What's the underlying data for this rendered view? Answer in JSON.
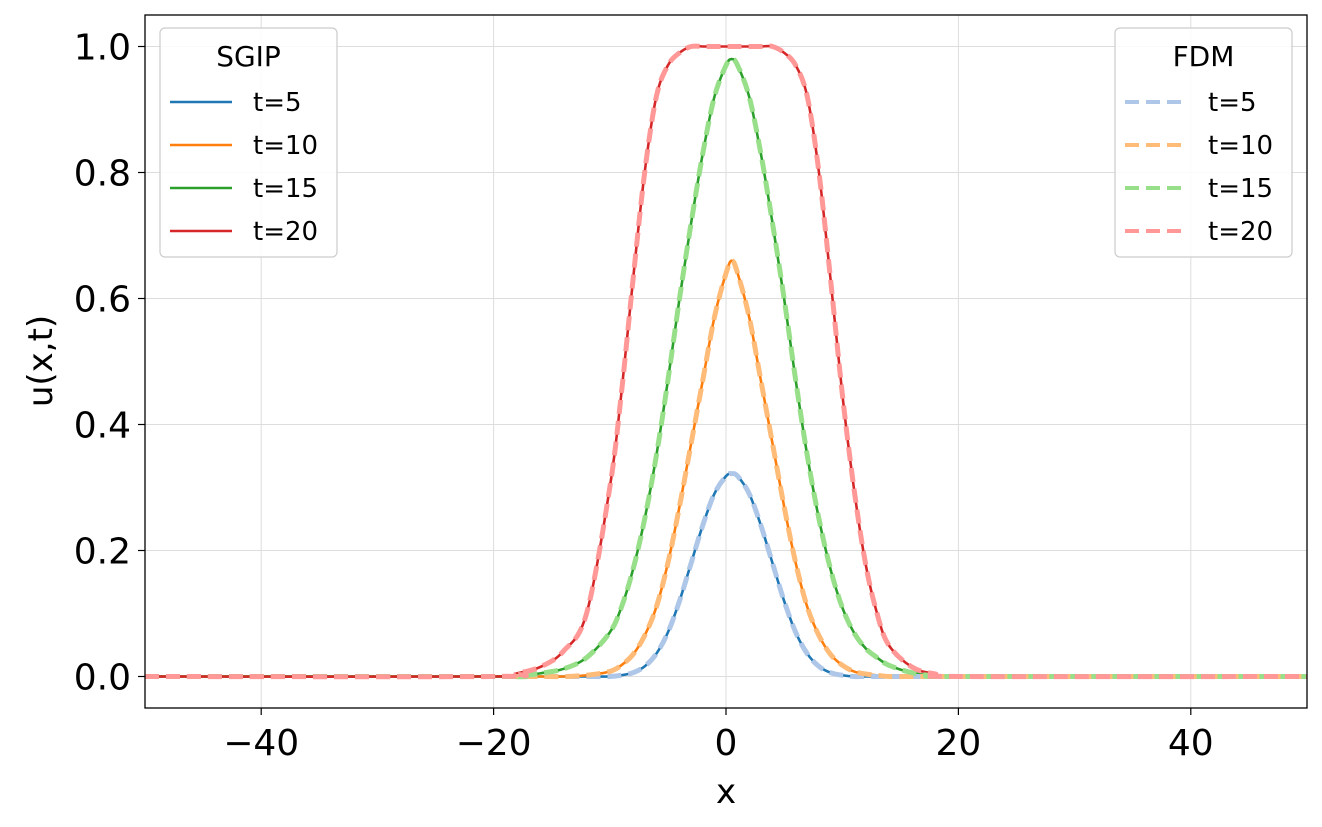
{
  "chart_data": {
    "type": "line",
    "xlabel": "x",
    "ylabel": "u(x,t)",
    "xlim": [
      -50,
      50
    ],
    "ylim": [
      -0.05,
      1.05
    ],
    "xticks": [
      {
        "value": -40,
        "label": "−40"
      },
      {
        "value": -20,
        "label": "−20"
      },
      {
        "value": 0,
        "label": "0"
      },
      {
        "value": 20,
        "label": "20"
      },
      {
        "value": 40,
        "label": "40"
      }
    ],
    "yticks": [
      {
        "value": 0.0,
        "label": "0.0"
      },
      {
        "value": 0.2,
        "label": "0.2"
      },
      {
        "value": 0.4,
        "label": "0.4"
      },
      {
        "value": 0.6,
        "label": "0.6"
      },
      {
        "value": 0.8,
        "label": "0.8"
      },
      {
        "value": 1.0,
        "label": "1.0"
      }
    ],
    "grid": true,
    "legends": [
      {
        "title": "SGIP",
        "placement": "top-left",
        "style": "solid",
        "entries": [
          "t=5",
          "t=10",
          "t=15",
          "t=20"
        ]
      },
      {
        "title": "FDM",
        "placement": "top-right",
        "style": "dashed",
        "entries": [
          "t=5",
          "t=10",
          "t=15",
          "t=20"
        ]
      }
    ],
    "x": [
      -50,
      -20,
      -18,
      -16,
      -14,
      -12,
      -10,
      -9,
      -8,
      -7,
      -6,
      -5,
      -4,
      -3,
      -2,
      -1,
      0,
      0.5,
      1,
      2,
      3,
      4,
      5,
      6,
      7,
      8,
      9,
      10,
      11,
      12,
      13,
      14,
      16,
      18,
      20,
      50
    ],
    "series": [
      {
        "group": "SGIP",
        "name": "t=5",
        "color": "#1f77b4",
        "values": [
          0,
          0,
          0,
          0,
          0,
          0,
          0,
          0.002,
          0.006,
          0.016,
          0.036,
          0.07,
          0.12,
          0.18,
          0.24,
          0.29,
          0.318,
          0.322,
          0.318,
          0.29,
          0.24,
          0.18,
          0.12,
          0.07,
          0.036,
          0.016,
          0.006,
          0.002,
          0,
          0,
          0,
          0,
          0,
          0,
          0,
          0
        ]
      },
      {
        "group": "SGIP",
        "name": "t=10",
        "color": "#ff7f0e",
        "values": [
          0,
          0,
          0,
          0,
          0,
          0.002,
          0.008,
          0.018,
          0.035,
          0.065,
          0.11,
          0.18,
          0.27,
          0.37,
          0.47,
          0.57,
          0.64,
          0.66,
          0.64,
          0.57,
          0.47,
          0.37,
          0.27,
          0.18,
          0.11,
          0.065,
          0.035,
          0.018,
          0.008,
          0.004,
          0.002,
          0,
          0,
          0,
          0,
          0
        ]
      },
      {
        "group": "SGIP",
        "name": "t=15",
        "color": "#2ca02c",
        "values": [
          0,
          0,
          0,
          0.005,
          0.012,
          0.03,
          0.07,
          0.11,
          0.17,
          0.25,
          0.35,
          0.47,
          0.6,
          0.72,
          0.83,
          0.92,
          0.97,
          0.98,
          0.97,
          0.92,
          0.83,
          0.72,
          0.6,
          0.47,
          0.35,
          0.25,
          0.17,
          0.11,
          0.07,
          0.045,
          0.03,
          0.018,
          0.006,
          0.001,
          0,
          0
        ]
      },
      {
        "group": "SGIP",
        "name": "t=20",
        "color": "#d62728",
        "values": [
          0,
          0,
          0.005,
          0.015,
          0.04,
          0.1,
          0.3,
          0.45,
          0.63,
          0.8,
          0.92,
          0.97,
          0.99,
          1.0,
          1.0,
          1.0,
          1.0,
          1.0,
          1.0,
          1.0,
          1.0,
          1.0,
          0.99,
          0.97,
          0.92,
          0.8,
          0.63,
          0.45,
          0.3,
          0.18,
          0.1,
          0.05,
          0.015,
          0.004,
          0,
          0
        ]
      },
      {
        "group": "FDM",
        "name": "t=5",
        "color": "#aec7e8",
        "values": [
          0,
          0,
          0,
          0,
          0,
          0,
          0,
          0.002,
          0.006,
          0.016,
          0.036,
          0.07,
          0.12,
          0.18,
          0.24,
          0.29,
          0.318,
          0.322,
          0.318,
          0.29,
          0.24,
          0.18,
          0.12,
          0.07,
          0.036,
          0.016,
          0.006,
          0.002,
          0,
          0,
          0,
          0,
          0,
          0,
          0,
          0
        ]
      },
      {
        "group": "FDM",
        "name": "t=10",
        "color": "#ffbb78",
        "values": [
          0,
          0,
          0,
          0,
          0,
          0.002,
          0.008,
          0.018,
          0.035,
          0.065,
          0.11,
          0.18,
          0.27,
          0.37,
          0.47,
          0.57,
          0.64,
          0.66,
          0.64,
          0.57,
          0.47,
          0.37,
          0.27,
          0.18,
          0.11,
          0.065,
          0.035,
          0.018,
          0.008,
          0.004,
          0.002,
          0,
          0,
          0,
          0,
          0
        ]
      },
      {
        "group": "FDM",
        "name": "t=15",
        "color": "#98df8a",
        "values": [
          0,
          0,
          0,
          0.005,
          0.012,
          0.03,
          0.07,
          0.11,
          0.17,
          0.25,
          0.35,
          0.47,
          0.6,
          0.72,
          0.83,
          0.92,
          0.97,
          0.98,
          0.97,
          0.92,
          0.83,
          0.72,
          0.6,
          0.47,
          0.35,
          0.25,
          0.17,
          0.11,
          0.07,
          0.045,
          0.03,
          0.018,
          0.006,
          0.001,
          0,
          0
        ]
      },
      {
        "group": "FDM",
        "name": "t=20",
        "color": "#ff9896",
        "values": [
          0,
          0,
          0.005,
          0.015,
          0.04,
          0.1,
          0.3,
          0.45,
          0.63,
          0.8,
          0.92,
          0.97,
          0.99,
          1.0,
          1.0,
          1.0,
          1.0,
          1.0,
          1.0,
          1.0,
          1.0,
          1.0,
          0.99,
          0.97,
          0.92,
          0.8,
          0.63,
          0.45,
          0.3,
          0.18,
          0.1,
          0.05,
          0.015,
          0.004,
          0,
          0
        ]
      }
    ]
  }
}
